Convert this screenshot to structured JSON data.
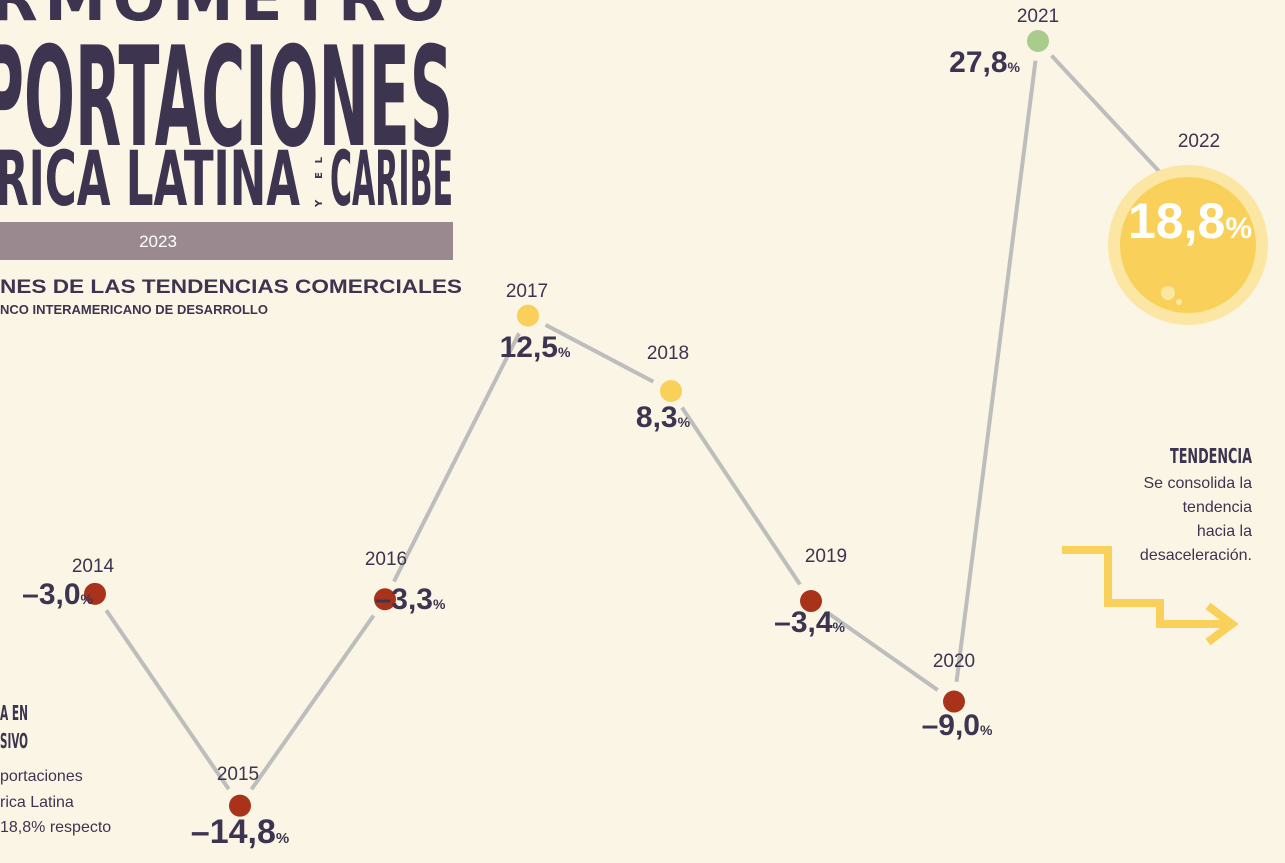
{
  "header": {
    "top": "RMÓMETRO",
    "main": "PORTACIONES",
    "region": "RICA LATINA",
    "joiner": "Y EL",
    "region_end": "CARIBE",
    "year": "2023",
    "subtitle": "NES DE LAS TENDENCIAS COMERCIALES",
    "source": "NCO INTERAMERICANO DE DESARROLLO"
  },
  "notes": [
    {
      "title_lines": [
        "A EN",
        "SIVO"
      ],
      "lines": [
        "portaciones",
        "rica Latina",
        "18,8% respecto"
      ]
    },
    {
      "title_lines": [
        "TENDENCIA"
      ],
      "lines": [
        "Se consolida la",
        "tendencia",
        "hacia la",
        "desaceleración."
      ]
    }
  ],
  "chart_data": {
    "type": "line",
    "categories": [
      "2014",
      "2015",
      "2016",
      "2017",
      "2018",
      "2019",
      "2020",
      "2021",
      "2022"
    ],
    "series": [
      {
        "name": "Exportaciones",
        "color": "#bdbdbd",
        "values": [
          -3.0,
          -14.8,
          -3.3,
          12.5,
          8.3,
          -3.4,
          -9.0,
          27.8,
          18.8
        ],
        "value_labels": [
          "–3,0%",
          "–14,8%",
          "–3,3%",
          "12,5%",
          "8,3%",
          "–3,4%",
          "–9,0%",
          "27,8%",
          "18,8%"
        ],
        "point_colors": [
          "#a8331a",
          "#a8331a",
          "#a8331a",
          "#f9d05a",
          "#f9d05a",
          "#a8331a",
          "#a8331a",
          "#a9cb8c",
          "#f9d05a"
        ]
      }
    ]
  }
}
